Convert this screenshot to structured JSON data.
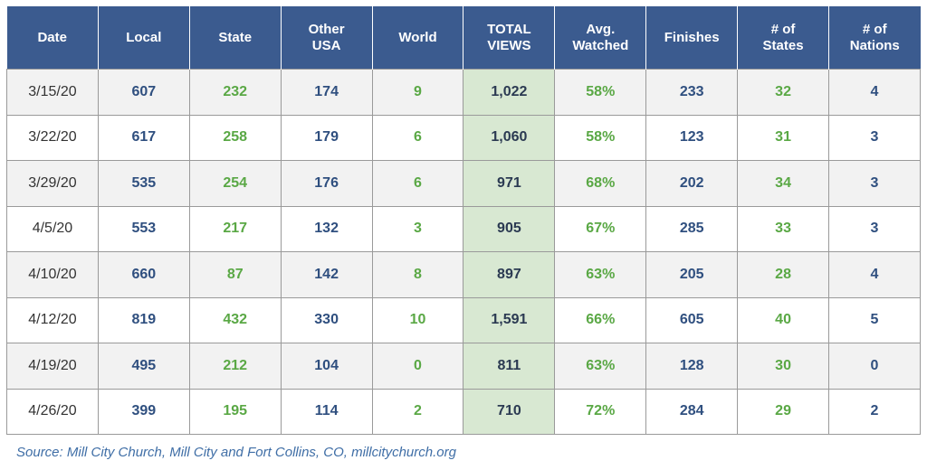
{
  "chart_data": {
    "type": "table",
    "columns": [
      "Date",
      "Local",
      "State",
      "Other\nUSA",
      "World",
      "TOTAL\nVIEWS",
      "Avg.\nWatched",
      "Finishes",
      "# of\nStates",
      "# of\nNations"
    ],
    "rows": [
      [
        "3/15/20",
        "607",
        "232",
        "174",
        "9",
        "1,022",
        "58%",
        "233",
        "32",
        "4"
      ],
      [
        "3/22/20",
        "617",
        "258",
        "179",
        "6",
        "1,060",
        "58%",
        "123",
        "31",
        "3"
      ],
      [
        "3/29/20",
        "535",
        "254",
        "176",
        "6",
        "971",
        "68%",
        "202",
        "34",
        "3"
      ],
      [
        "4/5/20",
        "553",
        "217",
        "132",
        "3",
        "905",
        "67%",
        "285",
        "33",
        "3"
      ],
      [
        "4/10/20",
        "660",
        "87",
        "142",
        "8",
        "897",
        "63%",
        "205",
        "28",
        "4"
      ],
      [
        "4/12/20",
        "819",
        "432",
        "330",
        "10",
        "1,591",
        "66%",
        "605",
        "40",
        "5"
      ],
      [
        "4/19/20",
        "495",
        "212",
        "104",
        "0",
        "811",
        "63%",
        "128",
        "30",
        "0"
      ],
      [
        "4/26/20",
        "399",
        "195",
        "114",
        "2",
        "710",
        "72%",
        "284",
        "29",
        "2"
      ]
    ],
    "column_colors": [
      "#333333",
      "#2f4f7f",
      "#5aa845",
      "#2f4f7f",
      "#5aa845",
      "#2b3a52",
      "#5aa845",
      "#2f4f7f",
      "#5aa845",
      "#2f4f7f"
    ],
    "highlight_column": "TOTAL\nVIEWS",
    "highlight_color": "#d8e8d2",
    "header_color": "#3b5b8f",
    "source": "Source: Mill City Church, Mill City and Fort Collins, CO, millcitychurch.org"
  }
}
